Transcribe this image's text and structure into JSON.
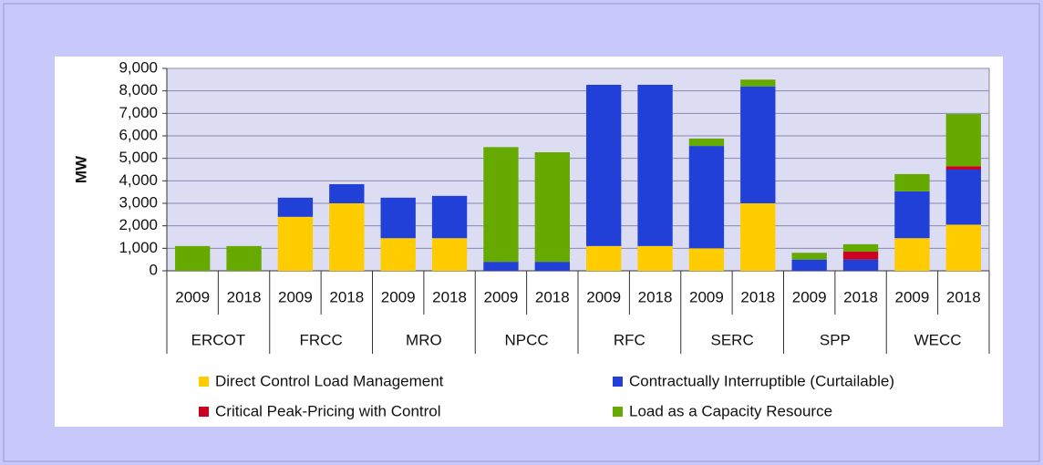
{
  "chart_data": {
    "type": "stacked-bar",
    "y_label": "MW",
    "categories": [
      "2009",
      "2018",
      "2009",
      "2018",
      "2009",
      "2018",
      "2009",
      "2018",
      "2009",
      "2018",
      "2009",
      "2018",
      "2009",
      "2018",
      "2009",
      "2018"
    ],
    "groups": [
      "ERCOT",
      "FRCC",
      "MRO",
      "NPCC",
      "RFC",
      "SERC",
      "SPP",
      "WECC"
    ],
    "series": [
      {
        "name": "Direct Control Load Management",
        "color": "#ffcc00",
        "values": [
          0,
          0,
          2400,
          3000,
          1450,
          1450,
          0,
          0,
          1100,
          1100,
          1000,
          3000,
          0,
          0,
          1450,
          2050
        ]
      },
      {
        "name": "Contractually Interruptible (Curtailable)",
        "color": "#2040d8",
        "values": [
          0,
          0,
          850,
          850,
          1800,
          1880,
          400,
          400,
          7170,
          7170,
          4550,
          5200,
          500,
          500,
          2080,
          2450
        ]
      },
      {
        "name": "Critical Peak-Pricing with Control",
        "color": "#cc0022",
        "values": [
          0,
          0,
          0,
          0,
          0,
          0,
          0,
          0,
          0,
          0,
          0,
          0,
          0,
          350,
          0,
          150
        ]
      },
      {
        "name": "Load as a Capacity Resource",
        "color": "#66aa00",
        "values": [
          1100,
          1100,
          0,
          0,
          0,
          0,
          5100,
          4870,
          0,
          0,
          330,
          300,
          300,
          330,
          770,
          2320
        ]
      }
    ],
    "ylim": [
      0,
      9000
    ],
    "yticks": [
      0,
      {
        "value": 1000,
        "label": "1,000"
      },
      {
        "value": 2000,
        "label": "2,000"
      },
      {
        "value": 3000,
        "label": "3,000"
      },
      {
        "value": 4000,
        "label": "4,000"
      },
      {
        "value": 5000,
        "label": "5,000"
      },
      {
        "value": 6000,
        "label": "6,000"
      },
      {
        "value": 7000,
        "label": "7,000"
      },
      {
        "value": 8000,
        "label": "8,000"
      },
      {
        "value": 9000,
        "label": "9,000"
      }
    ],
    "grid": true
  }
}
